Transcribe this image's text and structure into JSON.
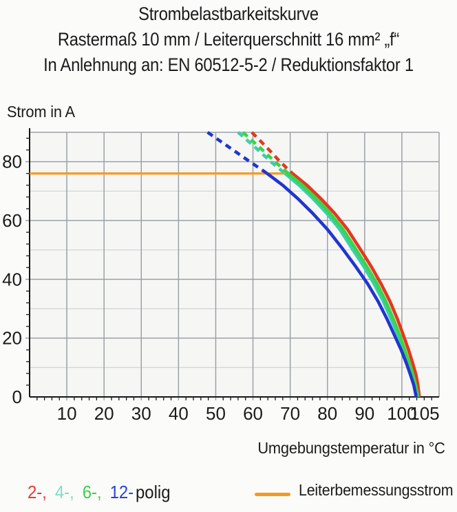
{
  "title": {
    "line1": "Strombelastbarkeitskurve",
    "line2": "Rastermaß 10 mm / Leiterquerschnitt 16 mm² „f“",
    "line3": "In Anlehnung an: EN 60512-5-2 / Reduktionsfaktor 1"
  },
  "y_axis_title": "Strom in A",
  "x_axis_title": "Umgebungstemperatur in °C",
  "legend": {
    "poles": [
      {
        "label": "2-,",
        "color": "#e8392e"
      },
      {
        "label": "4-,",
        "color": "#7fdcc9"
      },
      {
        "label": "6-,",
        "color": "#3cd04a"
      },
      {
        "label": "12-",
        "color": "#2b41d6"
      },
      {
        "label": "polig",
        "color": "#1b1b1b"
      }
    ],
    "rated": {
      "label": "Leiterbemessungsstrom",
      "color": "#f5991f"
    }
  },
  "colors": {
    "grid_major": "#9aa1a6",
    "grid_minor": "#ccd2d4",
    "axis": "#161616",
    "plot_fill": "#f6f7f5",
    "text": "#1b1b1b"
  },
  "chart_data": {
    "type": "line",
    "title": "Strombelastbarkeitskurve",
    "xlabel": "Umgebungstemperatur in °C",
    "ylabel": "Strom in A",
    "xlim": [
      0,
      110
    ],
    "ylim": [
      0,
      90
    ],
    "x_ticks": [
      10,
      20,
      30,
      40,
      50,
      60,
      70,
      80,
      90,
      100,
      105
    ],
    "y_ticks": [
      0,
      20,
      40,
      60,
      80
    ],
    "x_minor_step": 2,
    "y_minor_step": 4,
    "grid": true,
    "legend_position": "bottom",
    "rated_current_A": 76,
    "reference_line": {
      "label": "Leiterbemessungsstrom",
      "color": "#f5991f",
      "y": 76,
      "x_start": 0,
      "x_end": 70.6
    },
    "dashed_above_A": 76,
    "series": [
      {
        "name": "2-polig",
        "color": "#e5381d",
        "points": [
          [
            59.7,
            90
          ],
          [
            63.6,
            85
          ],
          [
            67.3,
            80
          ],
          [
            70.6,
            76
          ],
          [
            74.5,
            72
          ],
          [
            78.2,
            67.5
          ],
          [
            81.9,
            62.5
          ],
          [
            85.4,
            57
          ],
          [
            88.7,
            50.5
          ],
          [
            91.7,
            44.5
          ],
          [
            94.4,
            38.5
          ],
          [
            96.8,
            32.5
          ],
          [
            98.8,
            26.5
          ],
          [
            100.4,
            21
          ],
          [
            101.8,
            16
          ],
          [
            102.9,
            11.5
          ],
          [
            103.8,
            7.5
          ],
          [
            104.3,
            4
          ],
          [
            104.6,
            1
          ],
          [
            104.65,
            0
          ]
        ]
      },
      {
        "name": "4-polig",
        "color": "#3bcfa8",
        "points": [
          [
            56,
            90
          ],
          [
            60.5,
            85
          ],
          [
            64.8,
            80
          ],
          [
            68.6,
            76
          ],
          [
            72.4,
            72
          ],
          [
            76.1,
            67.5
          ],
          [
            79.8,
            62.5
          ],
          [
            83.3,
            57
          ],
          [
            86.6,
            50.5
          ],
          [
            89.7,
            44.5
          ],
          [
            92.5,
            38.5
          ],
          [
            95,
            32.5
          ],
          [
            97.1,
            26.5
          ],
          [
            98.9,
            21
          ],
          [
            100.4,
            16
          ],
          [
            101.7,
            11.5
          ],
          [
            102.7,
            7.5
          ],
          [
            103.4,
            4
          ],
          [
            103.9,
            1
          ],
          [
            104,
            0
          ]
        ]
      },
      {
        "name": "6-polig",
        "color": "#3bd34a",
        "points": [
          [
            57.3,
            90
          ],
          [
            61.7,
            85
          ],
          [
            65.9,
            80
          ],
          [
            69.5,
            76
          ],
          [
            73.3,
            72
          ],
          [
            77,
            67.5
          ],
          [
            80.7,
            62.5
          ],
          [
            84.2,
            57
          ],
          [
            87.5,
            50.5
          ],
          [
            90.5,
            44.5
          ],
          [
            93.3,
            38.5
          ],
          [
            95.7,
            32.5
          ],
          [
            97.7,
            26.5
          ],
          [
            99.4,
            21
          ],
          [
            100.8,
            16
          ],
          [
            102,
            11.5
          ],
          [
            103,
            7.5
          ],
          [
            103.7,
            4
          ],
          [
            104.2,
            1
          ],
          [
            104.3,
            0
          ]
        ]
      },
      {
        "name": "12-polig",
        "color": "#2135cf",
        "points": [
          [
            47.8,
            90
          ],
          [
            53.5,
            85
          ],
          [
            59.2,
            80
          ],
          [
            63.8,
            76
          ],
          [
            68,
            72
          ],
          [
            72,
            67.5
          ],
          [
            76,
            62.5
          ],
          [
            80,
            57
          ],
          [
            84,
            50.5
          ],
          [
            87.5,
            44.5
          ],
          [
            90.8,
            38.5
          ],
          [
            93.6,
            32.5
          ],
          [
            96,
            26.5
          ],
          [
            98,
            21
          ],
          [
            99.8,
            16
          ],
          [
            101.2,
            11.5
          ],
          [
            102.3,
            7.5
          ],
          [
            103.2,
            4
          ],
          [
            103.7,
            1
          ],
          [
            103.8,
            0
          ]
        ]
      }
    ]
  }
}
